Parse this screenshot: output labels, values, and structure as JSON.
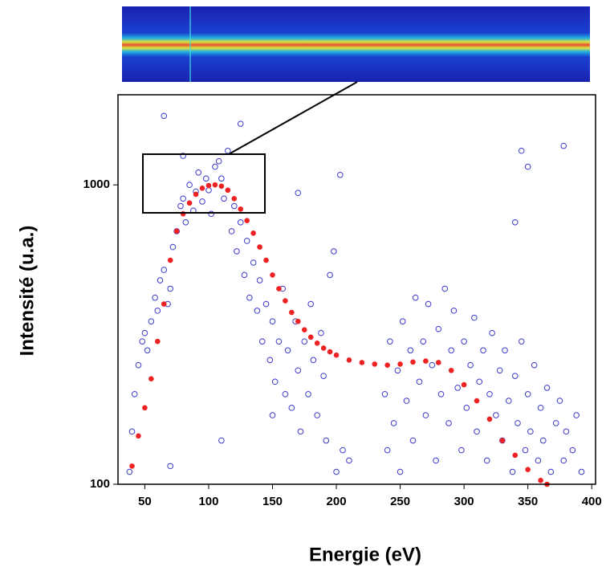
{
  "chart_data": {
    "type": "scatter",
    "x_label": "Energie (eV)",
    "y_label": "Intensité (u.a.)",
    "xlim": [
      29,
      403
    ],
    "ylim": [
      100,
      2000
    ],
    "yscale": "log",
    "xticks": [
      50,
      100,
      150,
      200,
      250,
      300,
      350,
      400
    ],
    "yticks": [
      100,
      1000
    ],
    "series": [
      {
        "color": "#3a3acc",
        "filled": false,
        "x": [
          38,
          40,
          42,
          45,
          48,
          50,
          52,
          55,
          58,
          60,
          62,
          65,
          68,
          70,
          72,
          75,
          78,
          80,
          82,
          85,
          88,
          90,
          92,
          95,
          98,
          100,
          102,
          105,
          108,
          110,
          112,
          115,
          118,
          120,
          122,
          125,
          128,
          130,
          132,
          135,
          138,
          140,
          142,
          145,
          148,
          150,
          152,
          155,
          158,
          160,
          162,
          165,
          168,
          170,
          172,
          175,
          178,
          180,
          182,
          185,
          188,
          190,
          192,
          195,
          198,
          200,
          203,
          205,
          210,
          65,
          80,
          125,
          170,
          150,
          110,
          70,
          238,
          240,
          242,
          245,
          248,
          250,
          252,
          255,
          258,
          260,
          262,
          265,
          268,
          270,
          272,
          275,
          278,
          280,
          282,
          285,
          288,
          290,
          292,
          295,
          298,
          300,
          302,
          305,
          308,
          310,
          312,
          315,
          318,
          320,
          322,
          325,
          328,
          330,
          332,
          335,
          338,
          340,
          342,
          345,
          348,
          350,
          352,
          355,
          358,
          360,
          362,
          365,
          368,
          372,
          375,
          378,
          380,
          385,
          388,
          392,
          345,
          350,
          378,
          340
        ],
        "values": [
          110,
          150,
          200,
          250,
          300,
          320,
          280,
          350,
          420,
          380,
          480,
          520,
          400,
          450,
          620,
          700,
          850,
          900,
          750,
          1000,
          820,
          950,
          1100,
          880,
          1050,
          960,
          800,
          1150,
          1200,
          1050,
          900,
          1300,
          700,
          850,
          600,
          750,
          500,
          650,
          420,
          550,
          380,
          480,
          300,
          400,
          260,
          350,
          220,
          300,
          450,
          200,
          280,
          180,
          350,
          240,
          150,
          300,
          200,
          400,
          260,
          170,
          320,
          230,
          140,
          500,
          600,
          110,
          1080,
          130,
          120,
          1700,
          1250,
          1600,
          940,
          170,
          140,
          115,
          200,
          130,
          300,
          160,
          240,
          110,
          350,
          190,
          280,
          140,
          420,
          220,
          300,
          170,
          400,
          250,
          120,
          330,
          200,
          450,
          160,
          280,
          380,
          210,
          130,
          300,
          180,
          250,
          360,
          150,
          220,
          280,
          120,
          200,
          320,
          170,
          240,
          140,
          280,
          190,
          110,
          230,
          160,
          300,
          130,
          200,
          150,
          250,
          120,
          180,
          140,
          210,
          110,
          160,
          190,
          120,
          150,
          130,
          170,
          110,
          1300,
          1150,
          1350,
          750
        ]
      },
      {
        "color": "#ee2222",
        "filled": true,
        "x": [
          40,
          45,
          50,
          55,
          60,
          65,
          70,
          75,
          80,
          85,
          90,
          95,
          100,
          105,
          110,
          115,
          120,
          125,
          130,
          135,
          140,
          145,
          150,
          155,
          160,
          165,
          170,
          175,
          180,
          185,
          190,
          195,
          200,
          210,
          220,
          230,
          240,
          250,
          260,
          270,
          280,
          290,
          300,
          310,
          320,
          330,
          340,
          350,
          360,
          365
        ],
        "values": [
          115,
          145,
          180,
          225,
          300,
          400,
          560,
          700,
          800,
          870,
          930,
          975,
          995,
          1000,
          990,
          960,
          900,
          830,
          760,
          690,
          620,
          560,
          500,
          450,
          410,
          375,
          350,
          328,
          310,
          296,
          285,
          277,
          270,
          260,
          255,
          252,
          250,
          252,
          256,
          258,
          255,
          240,
          215,
          190,
          165,
          140,
          125,
          112,
          103,
          100
        ]
      }
    ]
  }
}
